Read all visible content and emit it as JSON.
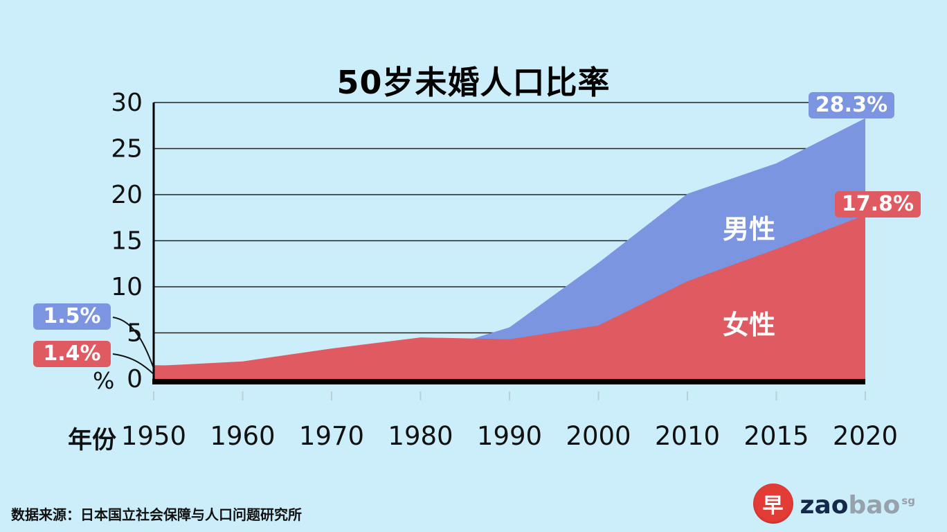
{
  "title": "50岁未婚人口比率",
  "source": "数据来源：日本国立社会保障与人口问题研究所",
  "logo": {
    "glyph": "早",
    "zao": "zao",
    "bao": "bao",
    "sg": "sg"
  },
  "colors": {
    "background": "#cceefa",
    "male": "#7b95e0",
    "female": "#e05a61",
    "grid": "#222222",
    "axis": "#000000",
    "tick": "#b9ced8",
    "text": "#111111",
    "badge_text": "#ffffff"
  },
  "chart_data": {
    "type": "area",
    "title": "50岁未婚人口比率",
    "x_label": "年份",
    "y_unit_label": "%",
    "categories": [
      "1950",
      "1960",
      "1970",
      "1980",
      "1990",
      "2000",
      "2010",
      "2015",
      "2020"
    ],
    "y_ticks": [
      0,
      5,
      10,
      15,
      20,
      25,
      30
    ],
    "ylim": [
      0,
      30
    ],
    "grid": true,
    "legend_position": "inside-right",
    "series": [
      {
        "name": "男性",
        "color": "#7b95e0",
        "values": [
          1.5,
          1.3,
          1.7,
          2.6,
          5.6,
          12.6,
          20.1,
          23.4,
          28.3
        ],
        "start_label": "1.5%",
        "end_label": "28.3%"
      },
      {
        "name": "女性",
        "color": "#e05a61",
        "values": [
          1.4,
          1.9,
          3.3,
          4.5,
          4.3,
          5.8,
          10.6,
          14.1,
          17.8
        ],
        "start_label": "1.4%",
        "end_label": "17.8%"
      }
    ]
  }
}
